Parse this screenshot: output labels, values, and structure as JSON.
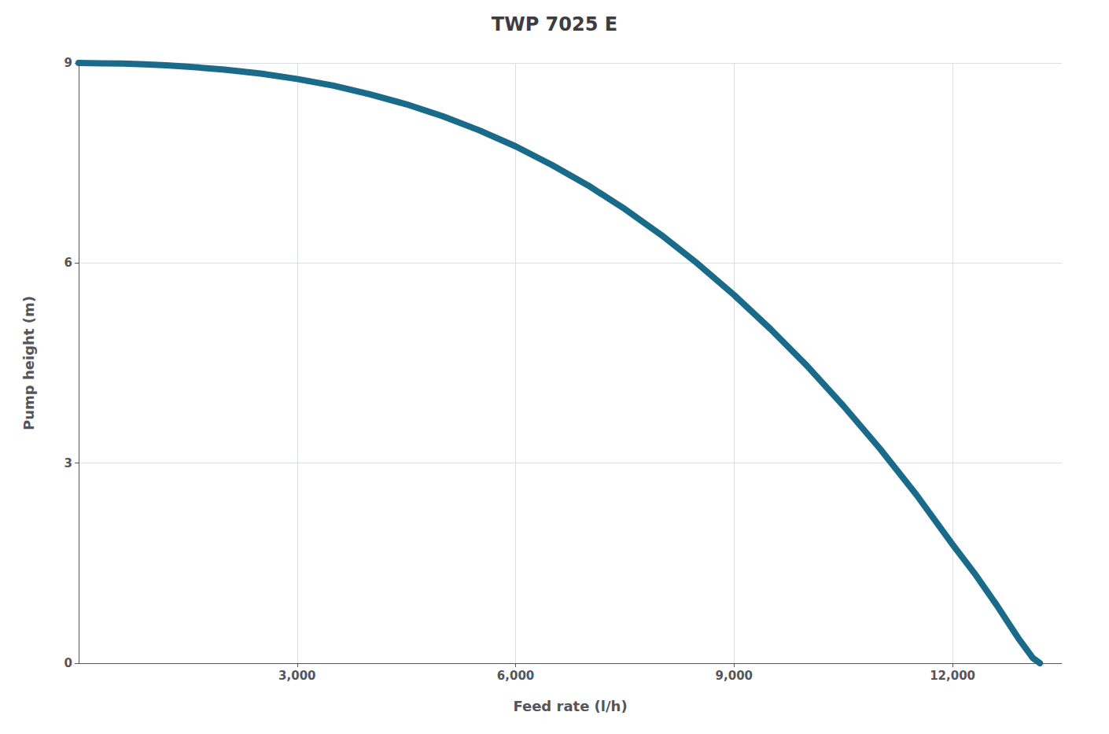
{
  "chart_data": {
    "type": "line",
    "title": "TWP 7025 E",
    "xlabel": "Feed rate (l/h)",
    "ylabel": "Pump height (m)",
    "x": [
      0,
      300,
      600,
      900,
      1200,
      1500,
      2000,
      2500,
      3000,
      3500,
      4000,
      4500,
      5000,
      5500,
      6000,
      6500,
      7000,
      7500,
      8000,
      8500,
      9000,
      9500,
      10000,
      10500,
      11000,
      11500,
      12000,
      12300,
      12600,
      12900,
      13100,
      13200
    ],
    "values": [
      9.0,
      8.995,
      8.99,
      8.98,
      8.965,
      8.945,
      8.9,
      8.84,
      8.76,
      8.66,
      8.53,
      8.38,
      8.2,
      7.99,
      7.75,
      7.47,
      7.16,
      6.81,
      6.42,
      5.99,
      5.52,
      5.01,
      4.46,
      3.86,
      3.22,
      2.53,
      1.78,
      1.35,
      0.88,
      0.38,
      0.08,
      0.0
    ],
    "color": "#1a6b8a",
    "xlim": [
      0,
      13500
    ],
    "xticks": [
      {
        "value": 3000,
        "label": "3,000"
      },
      {
        "value": 6000,
        "label": "6,000"
      },
      {
        "value": 9000,
        "label": "9,000"
      },
      {
        "value": 12000,
        "label": "12,000"
      }
    ],
    "ylim": [
      0,
      9
    ],
    "yticks": [
      0,
      3,
      6,
      9
    ],
    "grid": true
  }
}
